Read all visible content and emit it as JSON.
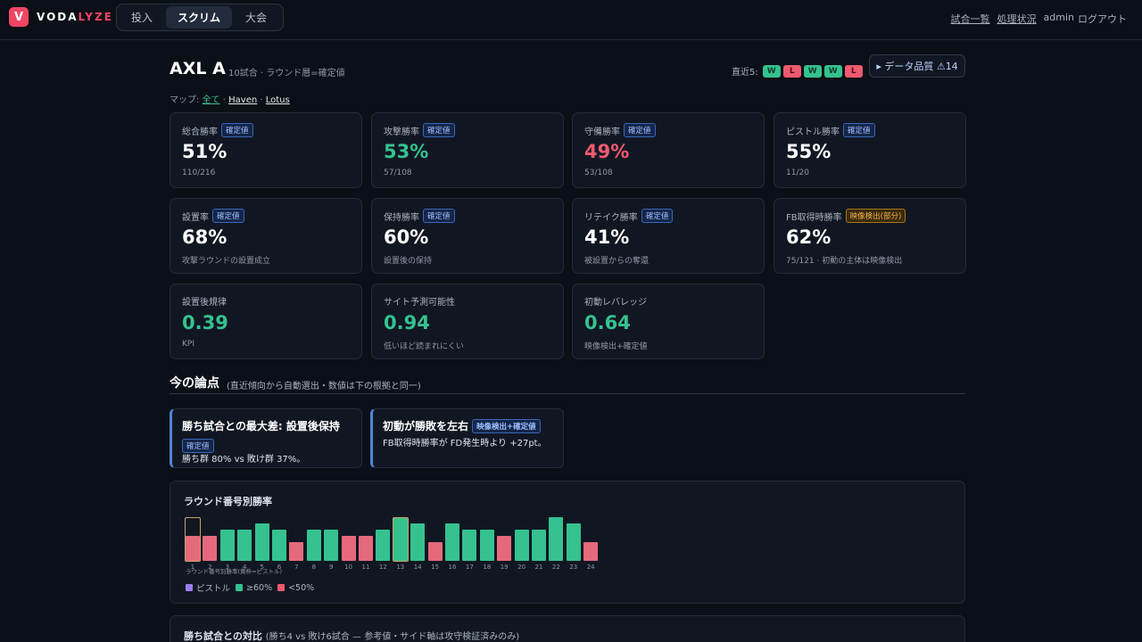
{
  "app": {
    "logo_letter": "V",
    "logo_a": "VODA",
    "logo_b": "LYZE",
    "accent": "#ef4664"
  },
  "nav": {
    "tabs": [
      {
        "label": "投入"
      },
      {
        "label": "スクリム",
        "active": true
      },
      {
        "label": "大会"
      }
    ]
  },
  "topright": {
    "matches": "試合一覧",
    "processing": "処理状況",
    "user": "admin",
    "logout": "ログアウト"
  },
  "header": {
    "team": "AXL A",
    "subtitle": "10試合 · ラウンド層=確定値",
    "recent_label": "直近5:",
    "recent": [
      "W",
      "L",
      "W",
      "W",
      "L"
    ],
    "data_quality": "▸ データ品質 ⚠14"
  },
  "maps": {
    "label": "マップ:",
    "items": [
      "全て",
      "Haven",
      "Lotus"
    ],
    "sep": "·"
  },
  "stats": [
    {
      "label": "総合勝率",
      "tag": "確定値",
      "value": "51%",
      "sub": "110/216",
      "tone": "white"
    },
    {
      "label": "攻撃勝率",
      "tag": "確定値",
      "value": "53%",
      "sub": "57/108",
      "tone": "green"
    },
    {
      "label": "守備勝率",
      "tag": "確定値",
      "value": "49%",
      "sub": "53/108",
      "tone": "red"
    },
    {
      "label": "ピストル勝率",
      "tag": "確定値",
      "value": "55%",
      "sub": "11/20",
      "tone": "white"
    },
    {
      "label": "設置率",
      "tag": "確定値",
      "value": "68%",
      "sub": "攻撃ラウンドの設置成立",
      "tone": "white"
    },
    {
      "label": "保持勝率",
      "tag": "確定値",
      "value": "60%",
      "sub": "設置後の保持",
      "tone": "white"
    },
    {
      "label": "リテイク勝率",
      "tag": "確定値",
      "value": "41%",
      "sub": "被設置からの奪還",
      "tone": "white"
    },
    {
      "label": "FB取得時勝率",
      "tag": "映像検出(部分)",
      "tag_warn": true,
      "value": "62%",
      "sub": "75/121 · 初動の主体は映像検出",
      "tone": "white"
    },
    {
      "label": "設置後規律",
      "tag": "",
      "value": "0.39",
      "sub": "KPI",
      "tone": "green"
    },
    {
      "label": "サイト予測可能性",
      "tag": "",
      "value": "0.94",
      "sub": "低いほど読まれにくい",
      "tone": "green"
    },
    {
      "label": "初動レバレッジ",
      "tag": "",
      "value": "0.64",
      "sub": "映像検出+確定値",
      "tone": "green"
    }
  ],
  "section": {
    "title": "今の論点",
    "note": "(直近傾向から自動選出・数値は下の根拠と同一)"
  },
  "insights": [
    {
      "title": "勝ち試合との最大差: 設置後保持",
      "tag": "確定値",
      "body": "勝ち群 80% vs 敗け群 37%。"
    },
    {
      "title": "初動が勝敗を左右",
      "tag": "映像検出+確定値",
      "body": "FB取得時勝率が FD発生時より +27pt。"
    }
  ],
  "round_chart": {
    "title": "ラウンド番号別勝率",
    "caption": "ラウンド番号別勝率(黄枠=ピストル)",
    "legend": [
      {
        "label": "ピストル",
        "color": "#9b7ef0"
      },
      {
        "label": "≥60%",
        "color": "#35c28f"
      },
      {
        "label": "<50%",
        "color": "#ee5a6f"
      }
    ]
  },
  "chart_data": {
    "type": "bar",
    "title": "ラウンド番号別勝率",
    "categories": [
      "1",
      "2",
      "3",
      "4",
      "5",
      "6",
      "7",
      "8",
      "9",
      "10",
      "11",
      "12",
      "13",
      "14",
      "15",
      "16",
      "17",
      "18",
      "19",
      "20",
      "21",
      "22",
      "23",
      "24"
    ],
    "values": [
      40,
      40,
      50,
      50,
      60,
      50,
      30,
      50,
      50,
      40,
      40,
      50,
      70,
      60,
      30,
      60,
      50,
      50,
      40,
      50,
      50,
      70,
      60,
      30
    ],
    "pistol_rounds": [
      "1",
      "13"
    ],
    "ylim": [
      0,
      100
    ]
  },
  "compare": {
    "title": "勝ち試合との対比",
    "note": "(勝ち4 vs 敗け6試合 — 参考値・サイド軸は攻守検証済みのみ)"
  }
}
